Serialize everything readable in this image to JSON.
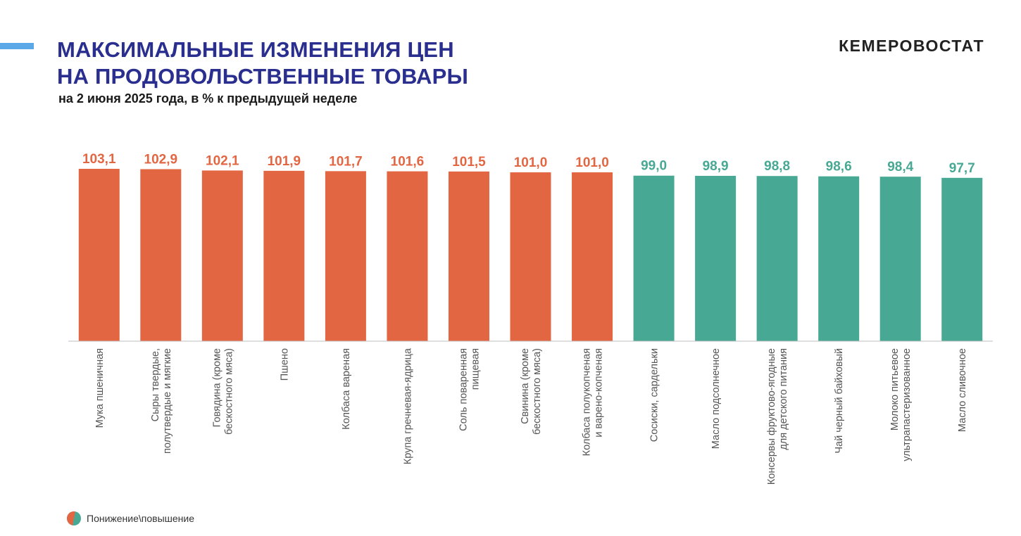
{
  "header": {
    "title_line1": "МАКСИМАЛЬНЫЕ ИЗМЕНЕНИЯ ЦЕН",
    "title_line2": "НА ПРОДОВОЛЬСТВЕННЫЕ ТОВАРЫ",
    "subtitle": "на 2 июня 2025 года, в % к предыдущей неделе",
    "brand": "КЕМЕРОВОСТАТ"
  },
  "legend": {
    "label": "Понижение\\повышение"
  },
  "colors": {
    "increase": "#e36643",
    "decrease": "#47a894",
    "title": "#2a2f8f",
    "accent_line": "#5aa8e8"
  },
  "chart_data": {
    "type": "bar",
    "ylim": [
      0,
      103.1
    ],
    "categories": [
      [
        "Мука пшеничная"
      ],
      [
        "Сыры твердые,",
        "полутвердые и мягкие"
      ],
      [
        "Говядина (кроме",
        "бескостного мяса)"
      ],
      [
        "Пшено"
      ],
      [
        "Колбаса вареная"
      ],
      [
        "Крупа гречневая-ядрица"
      ],
      [
        "Соль поваренная",
        "пищевая"
      ],
      [
        "Свинина (кроме",
        "бескостного мяса)"
      ],
      [
        "Колбаса полукопченая",
        "и варено-копченая"
      ],
      [
        "Сосиски, сардельки"
      ],
      [
        "Масло подсолнечное"
      ],
      [
        "Консервы фруктово-ягодные",
        "для детского питания"
      ],
      [
        "Чай черный байховый"
      ],
      [
        "Молоко питьевое",
        "ультрапастеризованное"
      ],
      [
        "Масло сливочное"
      ]
    ],
    "values": [
      103.1,
      102.9,
      102.1,
      101.9,
      101.7,
      101.6,
      101.5,
      101.0,
      101.0,
      99.0,
      98.9,
      98.8,
      98.6,
      98.4,
      97.7
    ],
    "value_labels": [
      "103,1",
      "102,9",
      "102,1",
      "101,9",
      "101,7",
      "101,6",
      "101,5",
      "101,0",
      "101,0",
      "99,0",
      "98,9",
      "98,8",
      "98,6",
      "98,4",
      "97,7"
    ],
    "direction": [
      "up",
      "up",
      "up",
      "up",
      "up",
      "up",
      "up",
      "up",
      "up",
      "down",
      "down",
      "down",
      "down",
      "down",
      "down"
    ]
  }
}
